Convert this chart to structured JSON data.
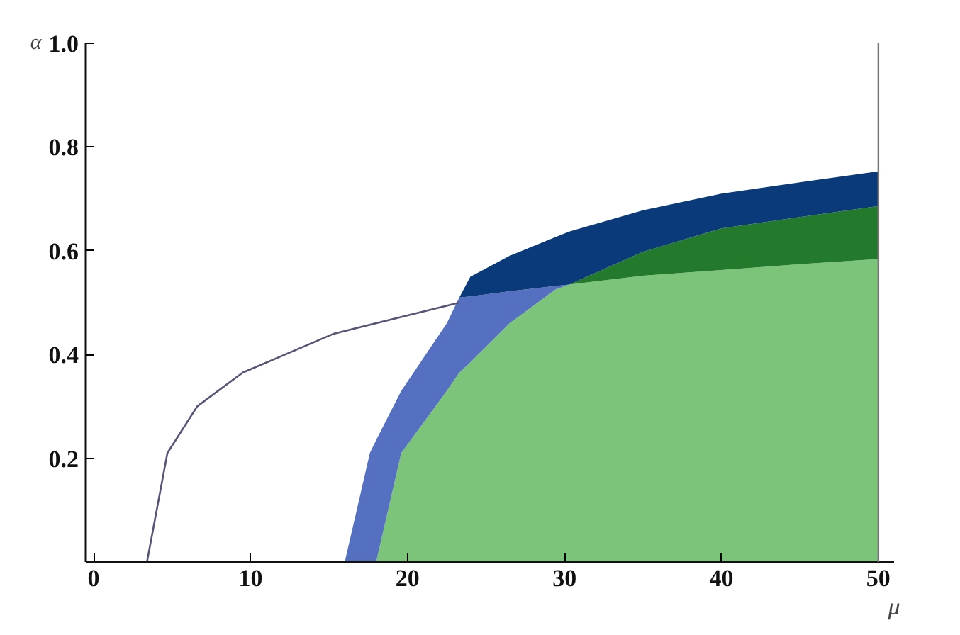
{
  "chart_data": {
    "type": "area",
    "stacked": true,
    "xlabel": "μ",
    "ylabel": "α",
    "xlim": [
      -0.5,
      51
    ],
    "ylim": [
      0,
      1.0
    ],
    "xticks": [
      0,
      10,
      20,
      30,
      40,
      50
    ],
    "yticks": [
      0.2,
      0.4,
      0.6,
      0.8,
      {
        "value": 1,
        "label": "1.0"
      }
    ],
    "grid": false,
    "x": [
      16,
      17.6,
      18,
      19.6,
      22.5,
      23.3,
      24,
      26.5,
      29.4,
      30.3,
      35,
      40,
      45,
      50
    ],
    "series": [
      {
        "color": "#7bc47a",
        "values": [
          null,
          null,
          0,
          0.21,
          0.33,
          0.365,
          0.385,
          0.46,
          0.525,
          0.535,
          0.552,
          0.563,
          0.574,
          0.584
        ]
      },
      {
        "color": "#5570c0",
        "values": [
          0,
          0.21,
          0.235,
          0.12,
          0.13,
          0.145,
          0.127,
          0.062,
          0.007,
          0,
          null,
          null,
          null,
          null
        ]
      },
      {
        "color": "#237a2d",
        "values": [
          null,
          null,
          null,
          null,
          null,
          null,
          null,
          null,
          null,
          0,
          0.046,
          0.08,
          0.091,
          0.102
        ]
      },
      {
        "color": "#0b3a7a",
        "values": [
          null,
          null,
          null,
          null,
          null,
          0,
          0.038,
          0.068,
          0.094,
          0.102,
          0.08,
          0.067,
          0.067,
          0.067
        ]
      },
      {
        "type": "line",
        "color": "#555577",
        "x": [
          3.4,
          4.7,
          6.6,
          9.5,
          15.3,
          23.3
        ],
        "values": [
          0,
          0.21,
          0.3,
          0.365,
          0.44,
          0.5
        ]
      }
    ],
    "ref_lines": [
      {
        "axis": "x",
        "value": 50,
        "color": "#777777"
      }
    ]
  }
}
